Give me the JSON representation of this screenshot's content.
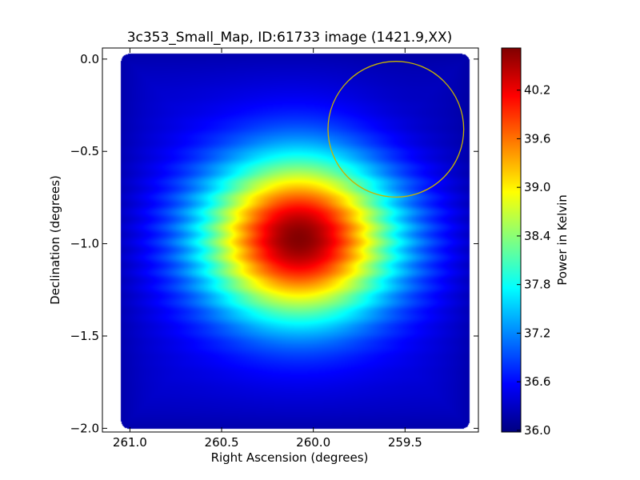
{
  "chart_data": {
    "type": "heatmap",
    "title": "3c353_Small_Map, ID:61733 image (1421.9,XX)",
    "xlabel": "Right Ascension (degrees)",
    "ylabel": "Declination (degrees)",
    "x_axis_inverted": true,
    "xlim": [
      261.15,
      259.1
    ],
    "ylim": [
      -2.02,
      0.06
    ],
    "x_ticks": [
      261.0,
      260.5,
      260.0,
      259.5
    ],
    "x_tick_labels": [
      "261.0",
      "260.5",
      "260.0",
      "259.5"
    ],
    "y_ticks": [
      0.0,
      -0.5,
      -1.0,
      -1.5,
      -2.0
    ],
    "y_tick_labels": [
      "0.0",
      "−0.5",
      "−1.0",
      "−1.5",
      "−2.0"
    ],
    "colorbar": {
      "label": "Power in Kelvin",
      "range": [
        35.98,
        40.72
      ],
      "ticks": [
        36.0,
        36.6,
        37.2,
        37.8,
        38.4,
        39.0,
        39.6,
        40.2
      ],
      "tick_labels": [
        "36.0",
        "36.6",
        "37.2",
        "37.8",
        "38.4",
        "39.0",
        "39.6",
        "40.2"
      ],
      "colormap": "jet"
    },
    "source_peak": {
      "ra": 260.08,
      "dec": -0.97,
      "value": 40.7
    },
    "background_level": 36.4,
    "map_extent": {
      "ra": [
        261.05,
        259.15
      ],
      "dec": [
        -2.0,
        0.03
      ]
    },
    "circle": {
      "center_ra": 259.55,
      "center_dec": -0.38,
      "radius_deg": 0.37,
      "color": "#c8b400"
    },
    "colors": {
      "axis": "#000000",
      "background": "#ffffff"
    }
  }
}
